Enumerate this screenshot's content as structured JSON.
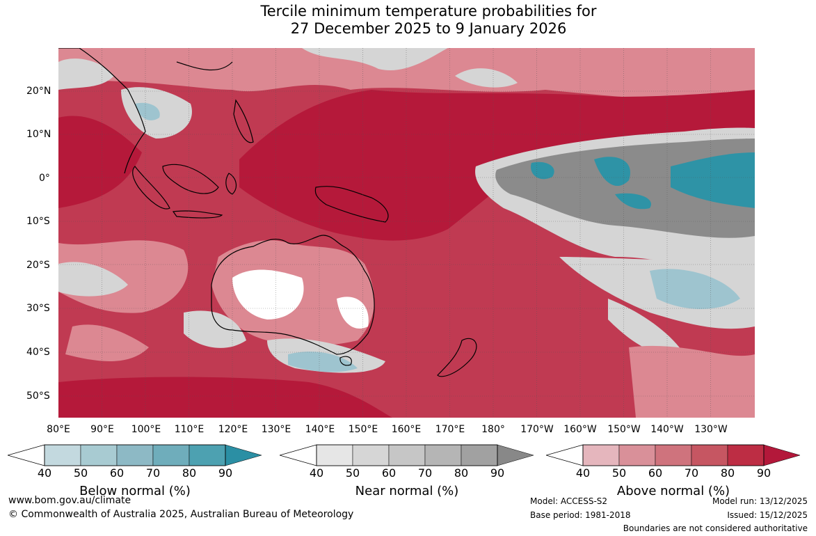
{
  "title": {
    "line1": "Tercile minimum temperature probabilities for",
    "line2": "27 December 2025 to 9 January 2026"
  },
  "map": {
    "lat_labels": [
      "20°N",
      "10°N",
      "0°",
      "10°S",
      "20°S",
      "30°S",
      "40°S",
      "50°S"
    ],
    "lon_labels": [
      "80°E",
      "90°E",
      "100°E",
      "110°E",
      "120°E",
      "130°E",
      "140°E",
      "150°E",
      "160°E",
      "170°E",
      "180°",
      "170°W",
      "160°W",
      "150°W",
      "140°W",
      "130°W"
    ],
    "colors": {
      "above_high": "#b5193a",
      "above_mid": "#c9485b",
      "above_low": "#dc8892",
      "near": "#d5d5d5",
      "near_dark": "#8b8b8b",
      "below": "#9ec4cf",
      "below_high": "#2e93a6",
      "white": "#ffffff"
    }
  },
  "colorbars": {
    "below": {
      "label": "Below normal (%)",
      "ticks": [
        "40",
        "50",
        "60",
        "70",
        "80",
        "90"
      ],
      "colors": [
        "#c3d9df",
        "#a8cbd2",
        "#8db9c5",
        "#6fadbb",
        "#4da1b1",
        "#2b8fa4"
      ]
    },
    "near": {
      "label": "Near normal (%)",
      "ticks": [
        "40",
        "50",
        "60",
        "70",
        "80",
        "90"
      ],
      "colors": [
        "#e6e6e6",
        "#d6d6d6",
        "#c6c6c6",
        "#b5b5b5",
        "#a1a1a1",
        "#888888"
      ]
    },
    "above": {
      "label": "Above normal (%)",
      "ticks": [
        "40",
        "50",
        "60",
        "70",
        "80",
        "90"
      ],
      "colors": [
        "#e5b6bd",
        "#d99099",
        "#cf737d",
        "#c65662",
        "#bd2d44",
        "#b3183a"
      ]
    }
  },
  "footer": {
    "website": "www.bom.gov.au/climate",
    "copyright": "© Commonwealth of Australia 2025, Australian Bureau of Meteorology",
    "model": "Model: ACCESS-S2",
    "base_period": "Base period: 1981-2018",
    "model_run": "Model run: 13/12/2025",
    "issued": "Issued: 15/12/2025",
    "boundaries": "Boundaries are not considered authoritative"
  }
}
